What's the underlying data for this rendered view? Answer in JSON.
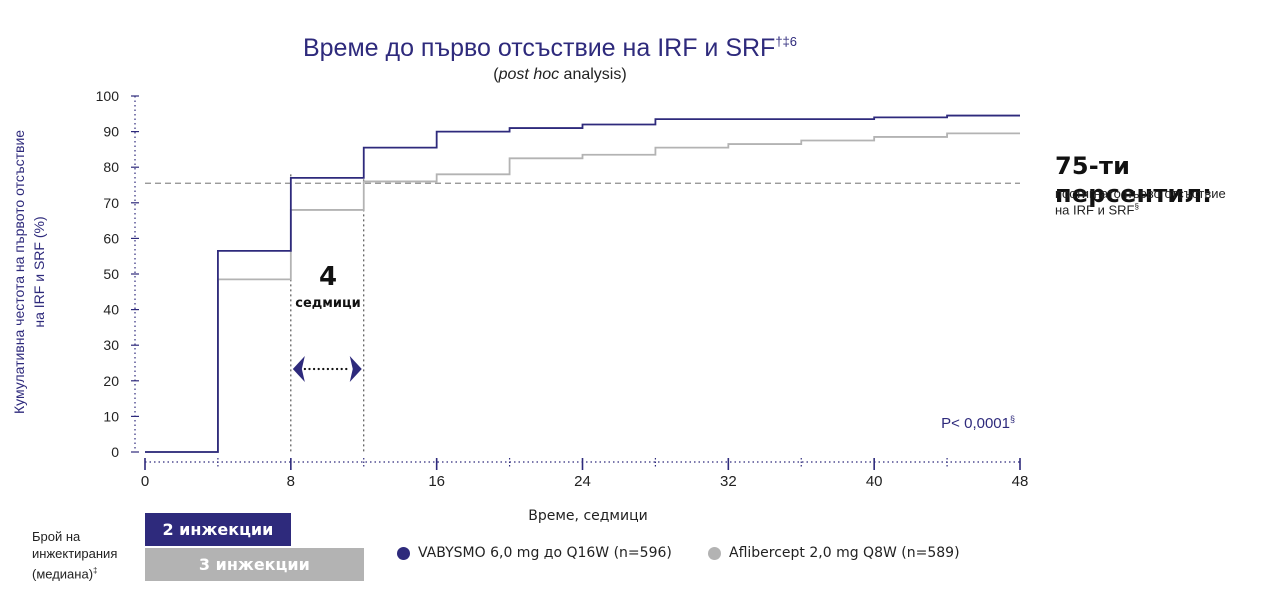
{
  "chart_data": {
    "type": "line",
    "title": "Време до първо отсъствие на IRF и SRF",
    "title_sup": "†‡6",
    "subtitle_italic": "post hoc",
    "subtitle_rest": " analysis)",
    "subtitle_open": "(",
    "xlabel": "Време, седмици",
    "ylabel_line1": "Кумулативна честота на първото отсъствие",
    "ylabel_line2": "на IRF и SRF (%)",
    "xlim": [
      0,
      48
    ],
    "ylim": [
      0,
      100
    ],
    "x_ticks": [
      0,
      8,
      16,
      24,
      32,
      40,
      48
    ],
    "y_ticks": [
      0,
      10,
      20,
      30,
      40,
      50,
      60,
      70,
      80,
      90,
      100
    ],
    "reference_line": 75.5,
    "p_value": "P< 0,0001",
    "p_value_sup": "§",
    "gap_annotation": {
      "number": "4",
      "unit": "седмици",
      "from": 8,
      "to": 12
    },
    "series": [
      {
        "name": "VABYSMO 6,0 mg до Q16W (n=596)",
        "color": "#2e2a7c",
        "x": [
          0,
          4,
          4,
          8,
          8,
          12,
          12,
          16,
          16,
          20,
          20,
          24,
          24,
          28,
          28,
          32,
          32,
          36,
          36,
          40,
          40,
          44,
          44,
          48
        ],
        "y": [
          0,
          0,
          56.5,
          56.5,
          77,
          77,
          85.5,
          85.5,
          90,
          90,
          91,
          91,
          92,
          92,
          93.5,
          93.5,
          93.5,
          93.5,
          93.5,
          93.5,
          94,
          94,
          94.5,
          94.5
        ]
      },
      {
        "name": "Aflibercept 2,0 mg Q8W (n=589)",
        "color": "#b3b3b3",
        "x": [
          0,
          4,
          4,
          8,
          8,
          12,
          12,
          16,
          16,
          20,
          20,
          24,
          24,
          28,
          28,
          32,
          32,
          36,
          36,
          40,
          40,
          44,
          44,
          48
        ],
        "y": [
          0,
          0,
          48.5,
          48.5,
          68,
          68,
          76,
          76,
          78,
          78,
          82.5,
          82.5,
          83.5,
          83.5,
          85.5,
          85.5,
          86.5,
          86.5,
          87.5,
          87.5,
          88.5,
          88.5,
          89.5,
          89.5
        ]
      }
    ],
    "legend_position": "bottom"
  },
  "annotation": {
    "title": "75-ти персентил:",
    "line1": "постигнато първо отсъствие",
    "line2": "на IRF и SRF",
    "line2_sup": "§"
  },
  "injections": {
    "label_line1": "Брой на",
    "label_line2": "инжектирания",
    "label_line3": "(медиана)",
    "label_sup": "‡",
    "bar1": "2 инжекции",
    "bar2": "3 инжекции",
    "bar1_weeks": 8,
    "bar2_weeks": 12
  },
  "colors": {
    "vabysmo": "#2e2a7c",
    "aflibercept": "#b3b3b3",
    "axis": "#2e2a7c",
    "reference": "#8c8c8c",
    "bar1": "#2e2a7c",
    "bar2": "#b3b3b3"
  }
}
